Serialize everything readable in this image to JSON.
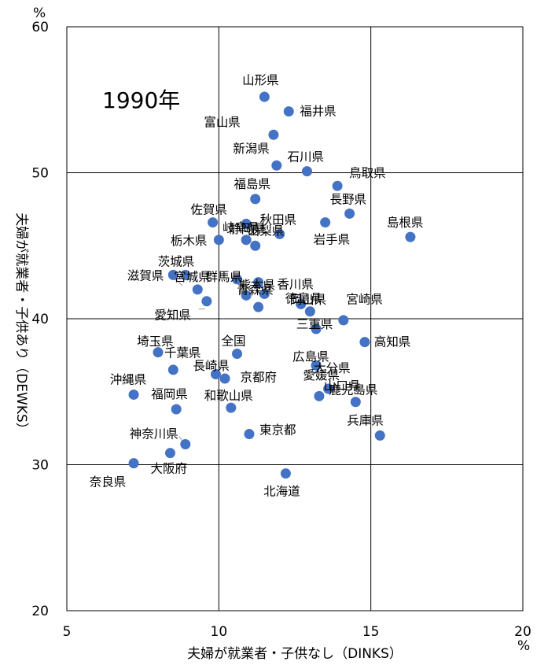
{
  "chart_data": {
    "type": "scatter",
    "title": "1990年",
    "xlabel": "夫婦が就業者・子供なし（DINKS）",
    "ylabel": "夫婦が就業者・子供あり（DEWKS）",
    "x_unit": "%",
    "y_unit": "%",
    "xlim": [
      5,
      20
    ],
    "ylim": [
      20,
      60
    ],
    "x_ticks": [
      "5",
      "10",
      "15",
      "20"
    ],
    "y_ticks": [
      "20",
      "30",
      "40",
      "50",
      "60"
    ],
    "grid": true,
    "marker_color": "#4472C4",
    "points": [
      {
        "label": "山形県",
        "x": 11.5,
        "y": 55.2
      },
      {
        "label": "福井県",
        "x": 12.3,
        "y": 54.2
      },
      {
        "label": "富山県",
        "x": 11.8,
        "y": 52.6
      },
      {
        "label": "新潟県",
        "x": 11.9,
        "y": 50.5
      },
      {
        "label": "石川県",
        "x": 12.9,
        "y": 50.1
      },
      {
        "label": "鳥取県",
        "x": 13.9,
        "y": 49.1
      },
      {
        "label": "福島県",
        "x": 11.2,
        "y": 48.2
      },
      {
        "label": "長野県",
        "x": 14.3,
        "y": 47.2
      },
      {
        "label": "佐賀県",
        "x": 9.8,
        "y": 46.6
      },
      {
        "label": "岐阜県",
        "x": 10.9,
        "y": 46.5
      },
      {
        "label": "秋田県",
        "x": 12.0,
        "y": 45.8
      },
      {
        "label": "岩手県",
        "x": 13.5,
        "y": 46.6
      },
      {
        "label": "島根県",
        "x": 16.3,
        "y": 45.6
      },
      {
        "label": "栃木県",
        "x": 10.0,
        "y": 45.4
      },
      {
        "label": "静岡県",
        "x": 10.9,
        "y": 45.4
      },
      {
        "label": "茨城県",
        "x": 8.9,
        "y": 43.0
      },
      {
        "label": "山梨県",
        "x": 11.2,
        "y": 45.0
      },
      {
        "label": "滋賀県",
        "x": 8.5,
        "y": 43.0
      },
      {
        "label": "群馬県",
        "x": 10.6,
        "y": 42.7
      },
      {
        "label": "宮城県",
        "x": 9.3,
        "y": 42.0
      },
      {
        "label": "熊本県",
        "x": 11.3,
        "y": 42.5
      },
      {
        "label": "青森県",
        "x": 10.9,
        "y": 41.6
      },
      {
        "label": "香川県",
        "x": 11.5,
        "y": 41.7
      },
      {
        "label": "徳島県",
        "x": 12.7,
        "y": 41.0
      },
      {
        "label": "愛知県",
        "x": 9.6,
        "y": 41.2
      },
      {
        "label": "奈良県",
        "x": 7.2,
        "y": 30.1
      },
      {
        "label": "岡山県",
        "x": 11.3,
        "y": 40.8
      },
      {
        "label": "宮崎県",
        "x": 13.0,
        "y": 40.5
      },
      {
        "label": "三重県",
        "x": 14.1,
        "y": 39.9
      },
      {
        "label": "埼玉県",
        "x": 13.2,
        "y": 39.3
      },
      {
        "label": "高知県",
        "x": 14.8,
        "y": 38.4
      },
      {
        "label": "千葉県",
        "x": 8.0,
        "y": 37.7
      },
      {
        "label": "全国",
        "x": 10.6,
        "y": 37.6
      },
      {
        "label": "広島県",
        "x": 13.2,
        "y": 36.8
      },
      {
        "label": "長崎県",
        "x": 8.5,
        "y": 36.5
      },
      {
        "label": "京都府",
        "x": 9.9,
        "y": 36.2
      },
      {
        "label": "大分県",
        "x": 10.2,
        "y": 35.9
      },
      {
        "label": "愛媛県",
        "x": 13.6,
        "y": 35.2
      },
      {
        "label": "山口県",
        "x": 13.3,
        "y": 34.7
      },
      {
        "label": "沖縄県",
        "x": 7.2,
        "y": 34.8
      },
      {
        "label": "福岡県",
        "x": 8.6,
        "y": 33.8
      },
      {
        "label": "和歌山県",
        "x": 10.4,
        "y": 33.9
      },
      {
        "label": "鹿児島県",
        "x": 14.5,
        "y": 34.3
      },
      {
        "label": "兵庫県",
        "x": 15.3,
        "y": 32.0
      },
      {
        "label": "東京都",
        "x": 11.0,
        "y": 32.1
      },
      {
        "label": "神奈川県",
        "x": 8.9,
        "y": 31.4
      },
      {
        "label": "大阪府",
        "x": 8.4,
        "y": 30.8
      },
      {
        "label": "北海道",
        "x": 12.2,
        "y": 29.4
      }
    ]
  }
}
